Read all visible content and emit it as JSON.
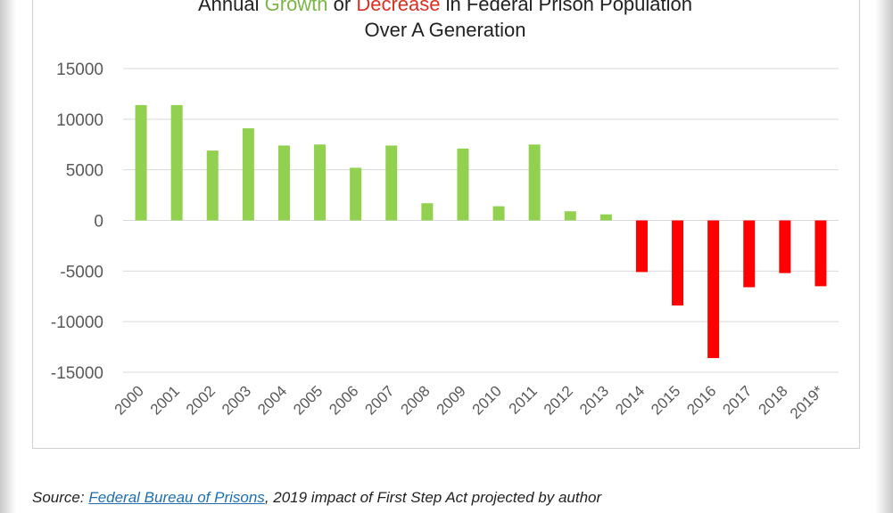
{
  "title": {
    "line1_prefix": "Annual ",
    "line1_growth": "Growth",
    "line1_or": " or ",
    "line1_decrease": "Decrease",
    "line1_suffix": " in Federal Prison Population",
    "line2": "Over A Generation"
  },
  "colors": {
    "growth": "#92d050",
    "decrease": "#ff0000",
    "grid": "#d9d9d9",
    "tick_text": "#595959"
  },
  "chart_data": {
    "type": "bar",
    "categories": [
      "2000",
      "2001",
      "2002",
      "2003",
      "2004",
      "2005",
      "2006",
      "2007",
      "2008",
      "2009",
      "2010",
      "2011",
      "2012",
      "2013",
      "2014",
      "2015",
      "2016",
      "2017",
      "2018",
      "2019*"
    ],
    "values": [
      11400,
      11400,
      6900,
      9100,
      7400,
      7500,
      5200,
      7400,
      1700,
      7100,
      1400,
      7500,
      900,
      600,
      -5100,
      -8400,
      -13600,
      -6600,
      -5200,
      -6500
    ],
    "ylim": [
      -15000,
      15000
    ],
    "yticks": [
      15000,
      10000,
      5000,
      0,
      -5000,
      -10000,
      -15000
    ],
    "ytick_labels": [
      "15000",
      "10000",
      "5000",
      "0",
      "-5000",
      "-10000",
      "-15000"
    ],
    "grid": true,
    "legend": "none",
    "xlabel": "",
    "ylabel": ""
  },
  "source": {
    "prefix": "Source: ",
    "link_text": "Federal Bureau of Prisons",
    "suffix": ", 2019 impact of First Step Act projected by author"
  }
}
